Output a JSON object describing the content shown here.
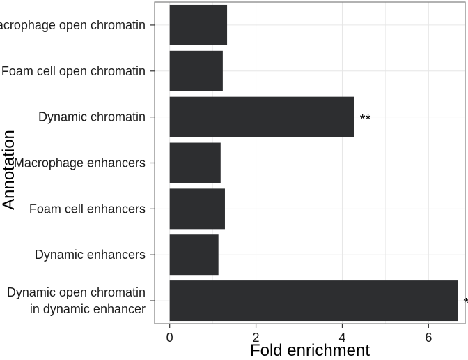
{
  "chart_data": {
    "type": "bar",
    "orientation": "horizontal",
    "title": "",
    "xlabel": "Fold enrichment",
    "ylabel": "Annotation",
    "categories": [
      [
        "Macrophage open chromatin"
      ],
      [
        "Foam cell open chromatin"
      ],
      [
        "Dynamic chromatin"
      ],
      [
        "Macrophage enhancers"
      ],
      [
        "Foam cell enhancers"
      ],
      [
        "Dynamic enhancers"
      ],
      [
        "Dynamic open chromatin",
        "in dynamic enhancer"
      ]
    ],
    "values": [
      1.33,
      1.23,
      4.28,
      1.18,
      1.28,
      1.13,
      6.68
    ],
    "annotations": [
      "",
      "",
      "**",
      "",
      "",
      "",
      "*"
    ],
    "xlim": [
      -0.35,
      6.85
    ],
    "xticks": [
      0,
      2,
      4,
      6
    ],
    "xtick_labels": [
      "0",
      "2",
      "4",
      "6"
    ],
    "grid": true,
    "colors": {
      "bar": "#2d2e30",
      "grid": "#e6e6e6",
      "panel_border": "#7f7f7f",
      "text": "#1a1a1a"
    }
  }
}
